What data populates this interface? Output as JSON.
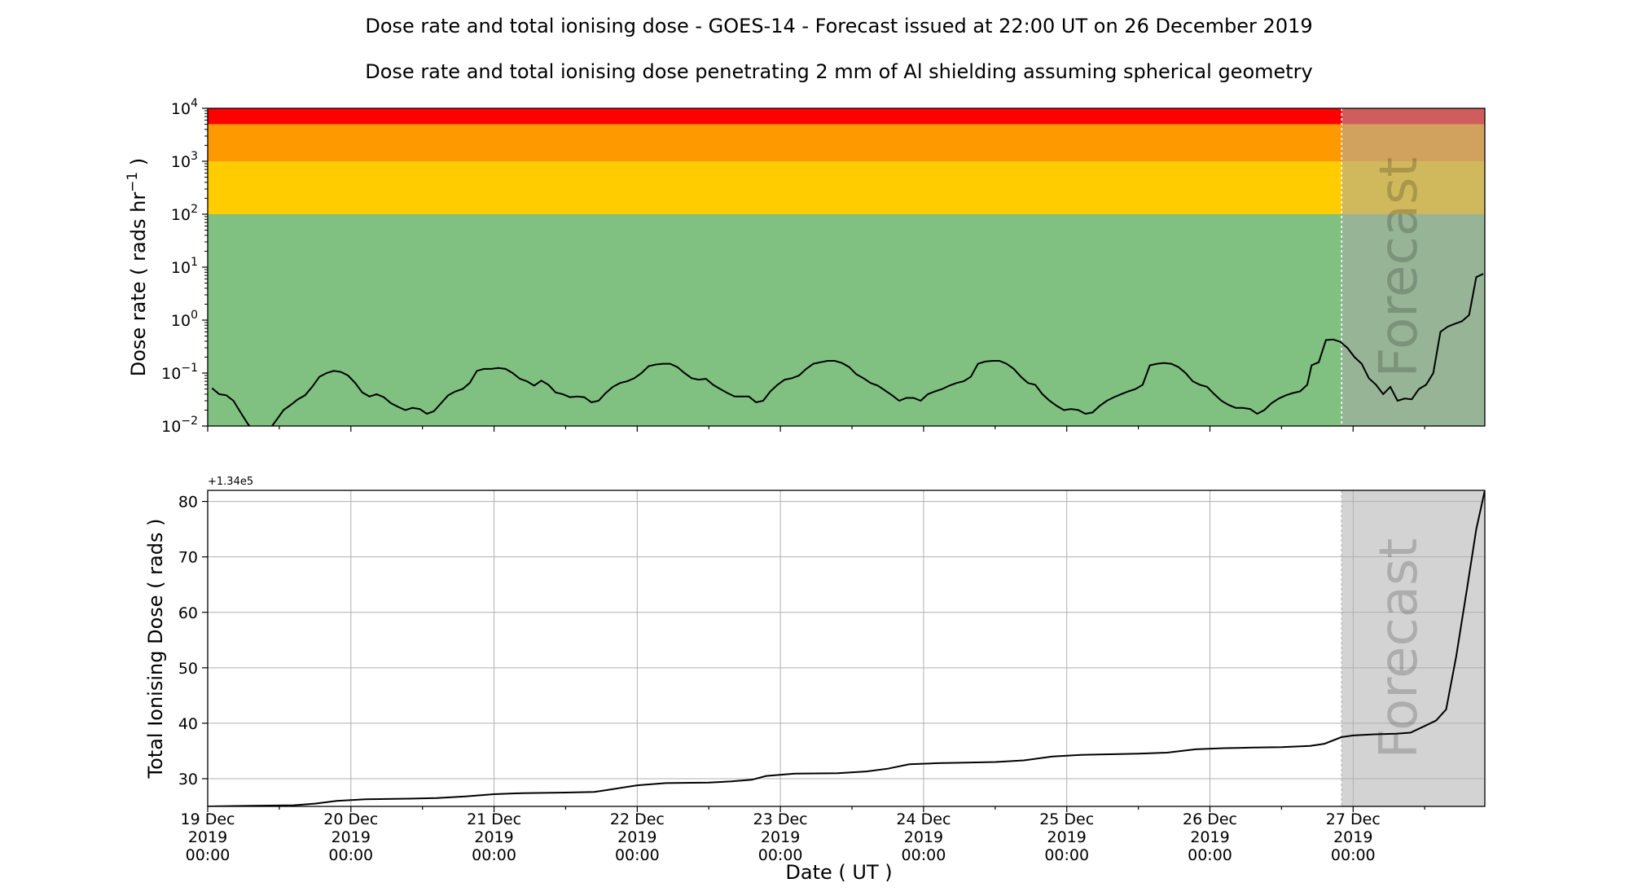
{
  "chart_data": [
    {
      "type": "line",
      "title": "Dose rate and total ionising dose - GOES-14 - Forecast issued at 22:00 UT on 26 December 2019",
      "subtitle": "Dose rate and total ionising dose penetrating 2 mm of Al shielding assuming spherical geometry",
      "ylabel": "Dose rate ( rads hr⁻¹ )",
      "ylabel_parts": {
        "main": "Dose rate ( rads hr",
        "sup": "−1",
        "close": " )"
      },
      "yscale": "log",
      "ylim": [
        0.01,
        10000
      ],
      "yticks": [
        {
          "base": "10",
          "exp": "4"
        },
        {
          "base": "10",
          "exp": "3"
        },
        {
          "base": "10",
          "exp": "2"
        },
        {
          "base": "10",
          "exp": "1"
        },
        {
          "base": "10",
          "exp": "0"
        },
        {
          "base": "10",
          "exp": "−1"
        },
        {
          "base": "10",
          "exp": "−2"
        }
      ],
      "xlim_days": [
        19.0,
        27.92
      ],
      "forecast_start_day": 26.92,
      "forecast_label": "Forecast",
      "grid": false,
      "bands": [
        {
          "from": 5000,
          "to": 10000,
          "color": "#ff0000"
        },
        {
          "from": 1000,
          "to": 5000,
          "color": "#ff9900"
        },
        {
          "from": 100,
          "to": 1000,
          "color": "#ffcc00"
        },
        {
          "from": 0.01,
          "to": 100,
          "color": "#80c080"
        }
      ],
      "series": [
        {
          "color": "#000000",
          "points": [
            [
              19.03,
              0.052
            ],
            [
              19.08,
              0.04
            ],
            [
              19.13,
              0.038
            ],
            [
              19.18,
              0.03
            ],
            [
              19.23,
              0.018
            ],
            [
              19.28,
              0.011
            ],
            [
              19.33,
              0.0075
            ],
            [
              19.38,
              0.0065
            ],
            [
              19.43,
              0.0085
            ],
            [
              19.48,
              0.013
            ],
            [
              19.53,
              0.02
            ],
            [
              19.58,
              0.025
            ],
            [
              19.63,
              0.032
            ],
            [
              19.68,
              0.038
            ],
            [
              19.73,
              0.055
            ],
            [
              19.78,
              0.085
            ],
            [
              19.83,
              0.1
            ],
            [
              19.88,
              0.11
            ],
            [
              19.93,
              0.105
            ],
            [
              19.98,
              0.09
            ],
            [
              20.03,
              0.065
            ],
            [
              20.08,
              0.043
            ],
            [
              20.13,
              0.036
            ],
            [
              20.18,
              0.04
            ],
            [
              20.23,
              0.035
            ],
            [
              20.28,
              0.027
            ],
            [
              20.33,
              0.023
            ],
            [
              20.38,
              0.02
            ],
            [
              20.43,
              0.022
            ],
            [
              20.48,
              0.021
            ],
            [
              20.53,
              0.017
            ],
            [
              20.58,
              0.019
            ],
            [
              20.63,
              0.027
            ],
            [
              20.68,
              0.038
            ],
            [
              20.73,
              0.045
            ],
            [
              20.78,
              0.05
            ],
            [
              20.83,
              0.065
            ],
            [
              20.88,
              0.11
            ],
            [
              20.93,
              0.12
            ],
            [
              20.98,
              0.12
            ],
            [
              21.03,
              0.125
            ],
            [
              21.08,
              0.12
            ],
            [
              21.13,
              0.1
            ],
            [
              21.18,
              0.078
            ],
            [
              21.23,
              0.07
            ],
            [
              21.28,
              0.058
            ],
            [
              21.33,
              0.072
            ],
            [
              21.38,
              0.06
            ],
            [
              21.43,
              0.043
            ],
            [
              21.48,
              0.04
            ],
            [
              21.53,
              0.035
            ],
            [
              21.58,
              0.036
            ],
            [
              21.63,
              0.035
            ],
            [
              21.68,
              0.028
            ],
            [
              21.73,
              0.03
            ],
            [
              21.78,
              0.042
            ],
            [
              21.83,
              0.055
            ],
            [
              21.88,
              0.065
            ],
            [
              21.93,
              0.07
            ],
            [
              21.98,
              0.08
            ],
            [
              22.03,
              0.1
            ],
            [
              22.08,
              0.135
            ],
            [
              22.13,
              0.145
            ],
            [
              22.18,
              0.15
            ],
            [
              22.23,
              0.15
            ],
            [
              22.28,
              0.13
            ],
            [
              22.33,
              0.1
            ],
            [
              22.38,
              0.08
            ],
            [
              22.43,
              0.075
            ],
            [
              22.48,
              0.078
            ],
            [
              22.53,
              0.06
            ],
            [
              22.58,
              0.05
            ],
            [
              22.63,
              0.042
            ],
            [
              22.68,
              0.036
            ],
            [
              22.73,
              0.036
            ],
            [
              22.78,
              0.036
            ],
            [
              22.83,
              0.028
            ],
            [
              22.88,
              0.03
            ],
            [
              22.93,
              0.045
            ],
            [
              22.98,
              0.06
            ],
            [
              23.03,
              0.075
            ],
            [
              23.08,
              0.08
            ],
            [
              23.13,
              0.09
            ],
            [
              23.18,
              0.12
            ],
            [
              23.23,
              0.15
            ],
            [
              23.28,
              0.16
            ],
            [
              23.33,
              0.17
            ],
            [
              23.38,
              0.17
            ],
            [
              23.43,
              0.155
            ],
            [
              23.48,
              0.13
            ],
            [
              23.53,
              0.095
            ],
            [
              23.58,
              0.08
            ],
            [
              23.63,
              0.065
            ],
            [
              23.68,
              0.058
            ],
            [
              23.73,
              0.047
            ],
            [
              23.78,
              0.038
            ],
            [
              23.83,
              0.03
            ],
            [
              23.88,
              0.034
            ],
            [
              23.93,
              0.034
            ],
            [
              23.98,
              0.03
            ],
            [
              24.03,
              0.04
            ],
            [
              24.08,
              0.045
            ],
            [
              24.13,
              0.05
            ],
            [
              24.18,
              0.058
            ],
            [
              24.23,
              0.065
            ],
            [
              24.28,
              0.07
            ],
            [
              24.33,
              0.085
            ],
            [
              24.38,
              0.15
            ],
            [
              24.43,
              0.165
            ],
            [
              24.48,
              0.17
            ],
            [
              24.53,
              0.17
            ],
            [
              24.58,
              0.15
            ],
            [
              24.63,
              0.12
            ],
            [
              24.68,
              0.085
            ],
            [
              24.73,
              0.065
            ],
            [
              24.78,
              0.06
            ],
            [
              24.83,
              0.04
            ],
            [
              24.88,
              0.03
            ],
            [
              24.93,
              0.024
            ],
            [
              24.98,
              0.02
            ],
            [
              25.03,
              0.021
            ],
            [
              25.08,
              0.02
            ],
            [
              25.13,
              0.017
            ],
            [
              25.18,
              0.018
            ],
            [
              25.23,
              0.024
            ],
            [
              25.28,
              0.03
            ],
            [
              25.33,
              0.035
            ],
            [
              25.38,
              0.04
            ],
            [
              25.43,
              0.045
            ],
            [
              25.48,
              0.05
            ],
            [
              25.53,
              0.06
            ],
            [
              25.58,
              0.14
            ],
            [
              25.63,
              0.15
            ],
            [
              25.68,
              0.155
            ],
            [
              25.73,
              0.15
            ],
            [
              25.78,
              0.13
            ],
            [
              25.83,
              0.1
            ],
            [
              25.88,
              0.07
            ],
            [
              25.93,
              0.06
            ],
            [
              25.98,
              0.055
            ],
            [
              26.03,
              0.04
            ],
            [
              26.08,
              0.03
            ],
            [
              26.13,
              0.025
            ],
            [
              26.18,
              0.022
            ],
            [
              26.23,
              0.022
            ],
            [
              26.28,
              0.021
            ],
            [
              26.33,
              0.017
            ],
            [
              26.38,
              0.02
            ],
            [
              26.43,
              0.027
            ],
            [
              26.48,
              0.033
            ],
            [
              26.53,
              0.038
            ],
            [
              26.58,
              0.042
            ],
            [
              26.63,
              0.045
            ],
            [
              26.68,
              0.06
            ],
            [
              26.71,
              0.14
            ],
            [
              26.76,
              0.16
            ],
            [
              26.81,
              0.42
            ],
            [
              26.86,
              0.43
            ],
            [
              26.91,
              0.39
            ],
            [
              26.96,
              0.3
            ],
            [
              27.01,
              0.2
            ],
            [
              27.06,
              0.15
            ],
            [
              27.11,
              0.08
            ],
            [
              27.16,
              0.06
            ],
            [
              27.21,
              0.04
            ],
            [
              27.26,
              0.055
            ],
            [
              27.31,
              0.03
            ],
            [
              27.36,
              0.033
            ],
            [
              27.41,
              0.032
            ],
            [
              27.46,
              0.05
            ],
            [
              27.51,
              0.06
            ],
            [
              27.56,
              0.1
            ],
            [
              27.61,
              0.6
            ],
            [
              27.66,
              0.75
            ],
            [
              27.71,
              0.85
            ],
            [
              27.76,
              0.95
            ],
            [
              27.81,
              1.25
            ],
            [
              27.86,
              6.5
            ],
            [
              27.91,
              7.5
            ]
          ]
        }
      ]
    },
    {
      "type": "line",
      "ylabel": "Total Ionising Dose ( rads )",
      "xlabel": "Date ( UT )",
      "offset_text": "+1.34e5",
      "yscale": "linear",
      "ylim": [
        25,
        82
      ],
      "yticks": [
        30,
        40,
        50,
        60,
        70,
        80
      ],
      "xlim_days": [
        19.0,
        27.92
      ],
      "forecast_start_day": 26.92,
      "forecast_label": "Forecast",
      "grid": true,
      "x_ticks": [
        {
          "day": 19,
          "line1": "19 Dec",
          "line2": "2019",
          "line3": "00:00"
        },
        {
          "day": 20,
          "line1": "20 Dec",
          "line2": "2019",
          "line3": "00:00"
        },
        {
          "day": 21,
          "line1": "21 Dec",
          "line2": "2019",
          "line3": "00:00"
        },
        {
          "day": 22,
          "line1": "22 Dec",
          "line2": "2019",
          "line3": "00:00"
        },
        {
          "day": 23,
          "line1": "23 Dec",
          "line2": "2019",
          "line3": "00:00"
        },
        {
          "day": 24,
          "line1": "24 Dec",
          "line2": "2019",
          "line3": "00:00"
        },
        {
          "day": 25,
          "line1": "25 Dec",
          "line2": "2019",
          "line3": "00:00"
        },
        {
          "day": 26,
          "line1": "26 Dec",
          "line2": "2019",
          "line3": "00:00"
        },
        {
          "day": 27,
          "line1": "27 Dec",
          "line2": "2019",
          "line3": "00:00"
        }
      ],
      "series": [
        {
          "color": "#000000",
          "points": [
            [
              19.0,
              25.0
            ],
            [
              19.3,
              25.1
            ],
            [
              19.6,
              25.2
            ],
            [
              19.75,
              25.5
            ],
            [
              19.9,
              26.0
            ],
            [
              20.1,
              26.3
            ],
            [
              20.4,
              26.4
            ],
            [
              20.6,
              26.5
            ],
            [
              20.8,
              26.8
            ],
            [
              21.0,
              27.2
            ],
            [
              21.2,
              27.4
            ],
            [
              21.5,
              27.5
            ],
            [
              21.7,
              27.6
            ],
            [
              21.8,
              28.0
            ],
            [
              22.0,
              28.8
            ],
            [
              22.2,
              29.2
            ],
            [
              22.5,
              29.3
            ],
            [
              22.65,
              29.5
            ],
            [
              22.8,
              29.8
            ],
            [
              22.9,
              30.5
            ],
            [
              23.1,
              30.9
            ],
            [
              23.4,
              31.0
            ],
            [
              23.6,
              31.3
            ],
            [
              23.75,
              31.8
            ],
            [
              23.9,
              32.6
            ],
            [
              24.1,
              32.8
            ],
            [
              24.3,
              32.9
            ],
            [
              24.5,
              33.0
            ],
            [
              24.7,
              33.3
            ],
            [
              24.9,
              34.0
            ],
            [
              25.1,
              34.3
            ],
            [
              25.3,
              34.4
            ],
            [
              25.5,
              34.5
            ],
            [
              25.7,
              34.7
            ],
            [
              25.9,
              35.3
            ],
            [
              26.1,
              35.5
            ],
            [
              26.3,
              35.6
            ],
            [
              26.5,
              35.7
            ],
            [
              26.7,
              35.9
            ],
            [
              26.8,
              36.3
            ],
            [
              26.92,
              37.5
            ],
            [
              27.0,
              37.8
            ],
            [
              27.15,
              38.0
            ],
            [
              27.3,
              38.1
            ],
            [
              27.4,
              38.3
            ],
            [
              27.5,
              39.5
            ],
            [
              27.58,
              40.5
            ],
            [
              27.65,
              42.5
            ],
            [
              27.72,
              52.0
            ],
            [
              27.8,
              65.0
            ],
            [
              27.86,
              75.0
            ],
            [
              27.92,
              82.0
            ]
          ]
        }
      ]
    }
  ]
}
